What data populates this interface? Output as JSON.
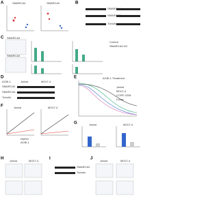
{
  "panels": [
    {
      "letter": "A",
      "labels": [
        "SMARCA4",
        "SMARCA2"
      ]
    },
    {
      "letter": "B",
      "labels": [
        "SMARCA4",
        "SMARCA2",
        "Tubulin"
      ]
    },
    {
      "letter": "C",
      "labels": [
        "SMARCA4",
        "SMARCA2",
        "Control",
        "SMARCA4 KO"
      ]
    },
    {
      "letter": "D",
      "labels": [
        "ACBI-1",
        "Jurkat",
        "MOLT-4",
        "SMARCA2",
        "SMARCA4",
        "Tubulin"
      ]
    },
    {
      "letter": "E",
      "labels": [
        "ACBI-1 Treatment",
        "Jurkat",
        "MOLT-4",
        "CCRF-CEM",
        "Loucy"
      ]
    },
    {
      "letter": "F",
      "labels": [
        "Jurkat",
        "MOLT-4",
        "DMSO",
        "ACBI-1"
      ]
    },
    {
      "letter": "G",
      "labels": [
        "Jurkat",
        "MOLT-4"
      ]
    },
    {
      "letter": "H",
      "labels": [
        "Jurkat",
        "MOLT-4"
      ]
    },
    {
      "letter": "I",
      "labels": [
        "SMARCA2",
        "Tubulin"
      ]
    },
    {
      "letter": "J",
      "labels": [
        "Jurkat",
        "MOLT-4"
      ]
    }
  ]
}
